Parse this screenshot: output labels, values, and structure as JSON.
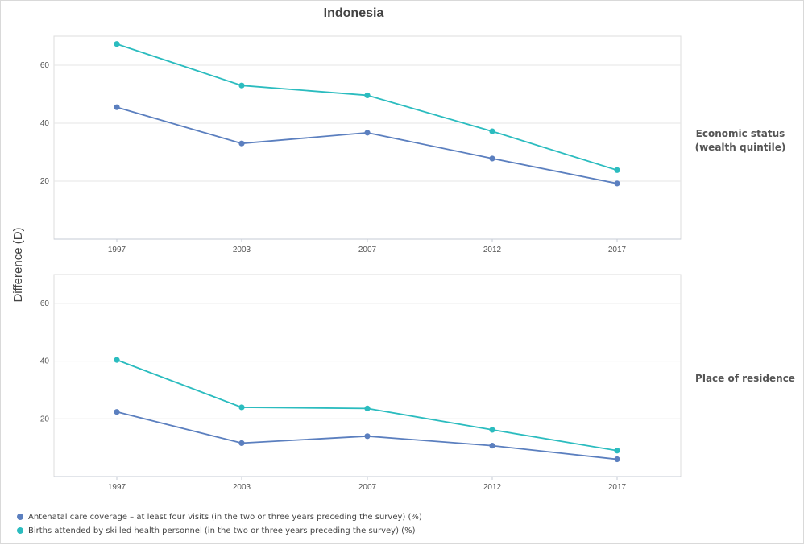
{
  "chart_data": {
    "type": "line",
    "title": "Indonesia",
    "ylabel": "Difference (D)",
    "xlabel": "",
    "categories": [
      "1997",
      "2003",
      "2007",
      "2012",
      "2017"
    ],
    "ylim": [
      0,
      70
    ],
    "yticks": [
      20,
      40,
      60
    ],
    "grid": true,
    "legend_position": "bottom-left",
    "colors": {
      "Antenatal care coverage - at least four visits (in the two or three years preceding the survey) (%)": "#5b7fbf",
      "Births attended by skilled health personnel (in the two or three years preceding the survey) (%)": "#2bbcbf"
    },
    "legend": [
      "Antenatal care coverage – at least four visits (in the two or three years preceding the survey) (%)",
      "Births attended by skilled health personnel (in the two or three years preceding the survey) (%)"
    ],
    "panels": [
      {
        "facet": [
          "Economic status",
          "(wealth quintile)"
        ],
        "series": [
          {
            "name": "Antenatal care coverage – at least four visits (in the two or three years preceding the survey) (%)",
            "color": "#5b7fbf",
            "values": [
              45.5,
              33.0,
              36.7,
              27.8,
              19.2
            ]
          },
          {
            "name": "Births attended by skilled health personnel (in the two or three years preceding the survey) (%)",
            "color": "#2bbcbf",
            "values": [
              67.3,
              53.0,
              49.6,
              37.2,
              23.8
            ]
          }
        ]
      },
      {
        "facet": [
          "Place of residence"
        ],
        "series": [
          {
            "name": "Antenatal care coverage – at least four visits (in the two or three years preceding the survey) (%)",
            "color": "#5b7fbf",
            "values": [
              22.4,
              11.6,
              14.0,
              10.7,
              6.0
            ]
          },
          {
            "name": "Births attended by skilled health personnel (in the two or three years preceding the survey) (%)",
            "color": "#2bbcbf",
            "values": [
              40.4,
              24.0,
              23.6,
              16.2,
              9.0
            ]
          }
        ]
      }
    ]
  }
}
